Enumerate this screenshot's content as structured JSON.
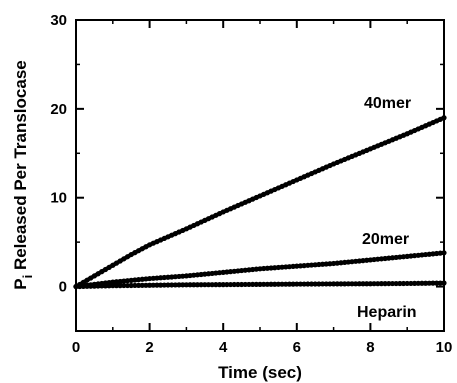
{
  "chart_data": {
    "type": "line",
    "title": "",
    "xlabel": "Time (sec)",
    "ylabel_main": "P",
    "ylabel_sub": "i",
    "ylabel_rest": " Released Per Translocase",
    "xlim": [
      0,
      10
    ],
    "ylim": [
      -5,
      30
    ],
    "x_ticks": [
      "0",
      "2",
      "4",
      "6",
      "8",
      "10"
    ],
    "y_ticks": [
      "0",
      "10",
      "20",
      "30"
    ],
    "grid": false,
    "series": [
      {
        "name": "40mer",
        "x": [
          0,
          0.5,
          1,
          1.5,
          2,
          3,
          4,
          5,
          6,
          7,
          8,
          9,
          10
        ],
        "y": [
          0,
          1.2,
          2.4,
          3.6,
          4.7,
          6.5,
          8.4,
          10.2,
          12.0,
          13.8,
          15.5,
          17.2,
          19.0
        ]
      },
      {
        "name": "20mer",
        "x": [
          0,
          0.5,
          1,
          1.5,
          2,
          3,
          4,
          5,
          6,
          7,
          8,
          9,
          10
        ],
        "y": [
          0,
          0.25,
          0.5,
          0.7,
          0.9,
          1.2,
          1.6,
          2.0,
          2.3,
          2.6,
          3.0,
          3.4,
          3.8
        ]
      },
      {
        "name": "Heparin",
        "x": [
          0,
          0.5,
          1,
          1.5,
          2,
          3,
          4,
          5,
          6,
          7,
          8,
          9,
          10
        ],
        "y": [
          0,
          0.05,
          0.1,
          0.12,
          0.15,
          0.2,
          0.22,
          0.25,
          0.28,
          0.3,
          0.32,
          0.35,
          0.4
        ]
      }
    ]
  }
}
